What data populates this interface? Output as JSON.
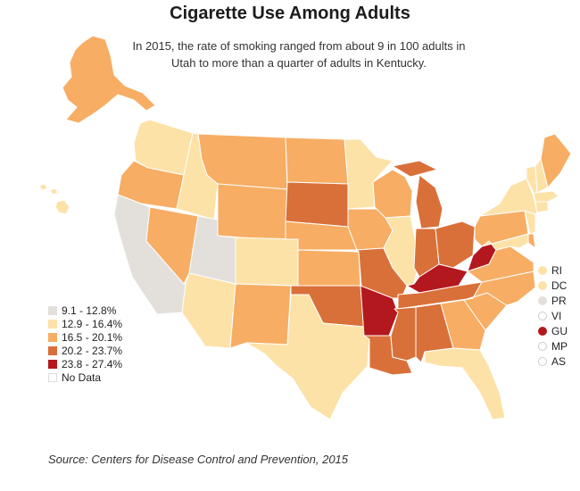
{
  "title": "Cigarette Use Among Adults",
  "subtitle": "In 2015, the rate of smoking ranged from about 9 in 100 adults in Utah to more than a quarter of adults in Kentucky.",
  "source": "Source: Centers for Disease Control and Prevention, 2015",
  "colors": {
    "c1": "#e3e0dc",
    "c2": "#fde2a8",
    "c3": "#f7ad63",
    "c4": "#d9703a",
    "c5": "#b3181e",
    "nodata": "#ffffff",
    "border": "#ffffff"
  },
  "legend": [
    {
      "label": "9.1 - 12.8%",
      "class": "c1"
    },
    {
      "label": "12.9 - 16.4%",
      "class": "c2"
    },
    {
      "label": "16.5 - 20.1%",
      "class": "c3"
    },
    {
      "label": "20.2 - 23.7%",
      "class": "c4"
    },
    {
      "label": "23.8 - 27.4%",
      "class": "c5"
    },
    {
      "label": "No Data",
      "class": "nodata"
    }
  ],
  "territories": [
    {
      "label": "RI",
      "class": "c2"
    },
    {
      "label": "DC",
      "class": "c2"
    },
    {
      "label": "PR",
      "class": "c1"
    },
    {
      "label": "VI",
      "class": "nodata"
    },
    {
      "label": "GU",
      "class": "c5"
    },
    {
      "label": "MP",
      "class": "nodata"
    },
    {
      "label": "AS",
      "class": "nodata"
    }
  ],
  "states": {
    "AK": "c3",
    "HI": "c2",
    "WA": "c2",
    "OR": "c3",
    "CA": "c1",
    "NV": "c3",
    "ID": "c2",
    "MT": "c3",
    "WY": "c3",
    "UT": "c1",
    "AZ": "c2",
    "CO": "c2",
    "NM": "c3",
    "ND": "c3",
    "SD": "c4",
    "NE": "c3",
    "KS": "c3",
    "OK": "c4",
    "TX": "c2",
    "MN": "c2",
    "IA": "c3",
    "MO": "c4",
    "AR": "c5",
    "LA": "c4",
    "WI": "c3",
    "IL": "c2",
    "MI": "c4",
    "IN": "c4",
    "OH": "c4",
    "KY": "c5",
    "WV": "c5",
    "TN": "c4",
    "MS": "c4",
    "AL": "c4",
    "GA": "c3",
    "FL": "c2",
    "SC": "c3",
    "NC": "c3",
    "VA": "c3",
    "PA": "c3",
    "NY": "c2",
    "VT": "c2",
    "NH": "c2",
    "ME": "c3",
    "MA": "c2",
    "CT": "c2",
    "NJ": "c2",
    "DE": "c3",
    "MD": "c2"
  }
}
